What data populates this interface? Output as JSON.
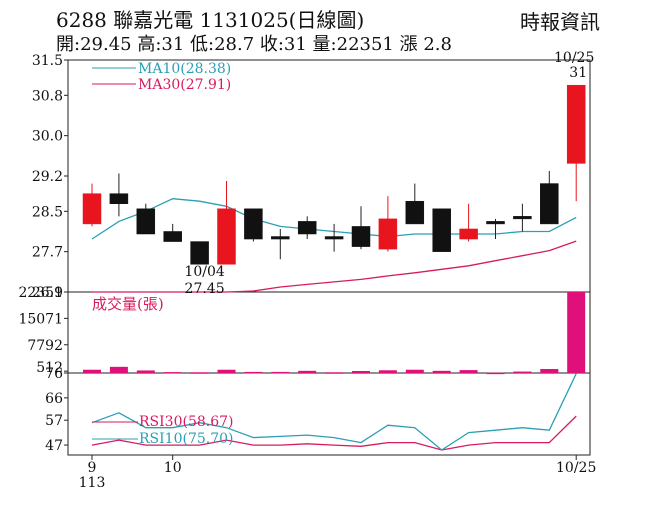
{
  "header": {
    "title": "6288  聯嘉光電 1131025(日線圖)",
    "ohlc_line": "開:29.45 高:31 低:28.7 收:31 量:22351 漲 2.8",
    "source": "時報資訊"
  },
  "chart_data": {
    "type": "candlestick",
    "x_tick_labels": [
      {
        "label": "9",
        "sub": "113",
        "index": 0
      },
      {
        "label": "10",
        "index": 3
      },
      {
        "label": "10/25",
        "index": 18
      }
    ],
    "price_panel": {
      "ylim": [
        26.9,
        31.5
      ],
      "yticks": [
        "31.5",
        "30.8",
        "30.0",
        "29.2",
        "28.5",
        "27.7",
        "26.9"
      ],
      "legend": [
        {
          "label": "MA10(28.38)",
          "color": "#2a9fb5"
        },
        {
          "label": "MA30(27.91)",
          "color": "#d81b60"
        }
      ],
      "candles": [
        {
          "o": 28.25,
          "h": 29.05,
          "l": 28.2,
          "c": 28.85
        },
        {
          "o": 28.85,
          "h": 29.25,
          "l": 28.4,
          "c": 28.65
        },
        {
          "o": 28.55,
          "h": 28.65,
          "l": 28.05,
          "c": 28.05
        },
        {
          "o": 28.1,
          "h": 28.25,
          "l": 27.9,
          "c": 27.9
        },
        {
          "o": 27.9,
          "h": 27.9,
          "l": 27.45,
          "c": 27.45
        },
        {
          "o": 27.45,
          "h": 29.1,
          "l": 27.45,
          "c": 28.55
        },
        {
          "o": 28.55,
          "h": 28.55,
          "l": 27.9,
          "c": 27.95
        },
        {
          "o": 28.0,
          "h": 28.15,
          "l": 27.55,
          "c": 27.95
        },
        {
          "o": 28.3,
          "h": 28.4,
          "l": 27.95,
          "c": 28.05
        },
        {
          "o": 28.0,
          "h": 28.25,
          "l": 27.7,
          "c": 27.95
        },
        {
          "o": 28.2,
          "h": 28.6,
          "l": 27.75,
          "c": 27.8
        },
        {
          "o": 27.75,
          "h": 28.8,
          "l": 27.7,
          "c": 28.35
        },
        {
          "o": 28.7,
          "h": 29.05,
          "l": 28.25,
          "c": 28.25
        },
        {
          "o": 28.55,
          "h": 28.55,
          "l": 27.7,
          "c": 27.7
        },
        {
          "o": 27.95,
          "h": 28.65,
          "l": 27.9,
          "c": 28.15
        },
        {
          "o": 28.3,
          "h": 28.35,
          "l": 27.95,
          "c": 28.25
        },
        {
          "o": 28.4,
          "h": 28.65,
          "l": 28.1,
          "c": 28.35
        },
        {
          "o": 29.05,
          "h": 29.3,
          "l": 28.25,
          "c": 28.25
        },
        {
          "o": 29.45,
          "h": 31.0,
          "l": 28.7,
          "c": 31.0
        }
      ],
      "ma10": [
        27.95,
        28.3,
        28.5,
        28.75,
        28.7,
        28.6,
        28.35,
        28.2,
        28.15,
        28.1,
        28.05,
        28.0,
        28.05,
        28.05,
        28.05,
        28.05,
        28.1,
        28.1,
        28.38
      ],
      "ma30": [
        26.9,
        26.9,
        26.9,
        26.9,
        26.9,
        26.9,
        26.92,
        27.0,
        27.05,
        27.1,
        27.15,
        27.22,
        27.28,
        27.35,
        27.42,
        27.52,
        27.62,
        27.72,
        27.91
      ],
      "annotations": [
        {
          "date": "10/04",
          "value": "27.45",
          "index": 4
        },
        {
          "date": "10/25",
          "value": "31",
          "index": 18
        }
      ]
    },
    "volume_panel": {
      "label": "成交量(張)",
      "ylim": [
        0,
        22351
      ],
      "yticks": [
        "22351",
        "15071",
        "7792",
        "512"
      ],
      "values": [
        900,
        1700,
        700,
        250,
        200,
        900,
        300,
        300,
        600,
        200,
        550,
        750,
        900,
        600,
        800,
        100,
        400,
        1100,
        22351
      ]
    },
    "rsi_panel": {
      "ylim": [
        43,
        76
      ],
      "yticks": [
        "76",
        "66",
        "57",
        "47"
      ],
      "legend": [
        {
          "label": "RSI30(58.67)",
          "color": "#d81b60"
        },
        {
          "label": "RSI10(75.70)",
          "color": "#2a9fb5"
        }
      ],
      "rsi10": [
        56,
        60,
        54,
        54,
        56,
        54,
        50,
        50.5,
        51,
        50,
        48,
        55,
        54,
        45,
        52,
        53,
        54,
        53,
        75.7
      ],
      "rsi30": [
        47,
        49,
        47,
        47,
        47,
        49,
        47,
        47,
        47.5,
        47,
        46.5,
        48,
        48,
        45,
        47,
        48,
        48,
        48,
        58.67
      ]
    }
  }
}
